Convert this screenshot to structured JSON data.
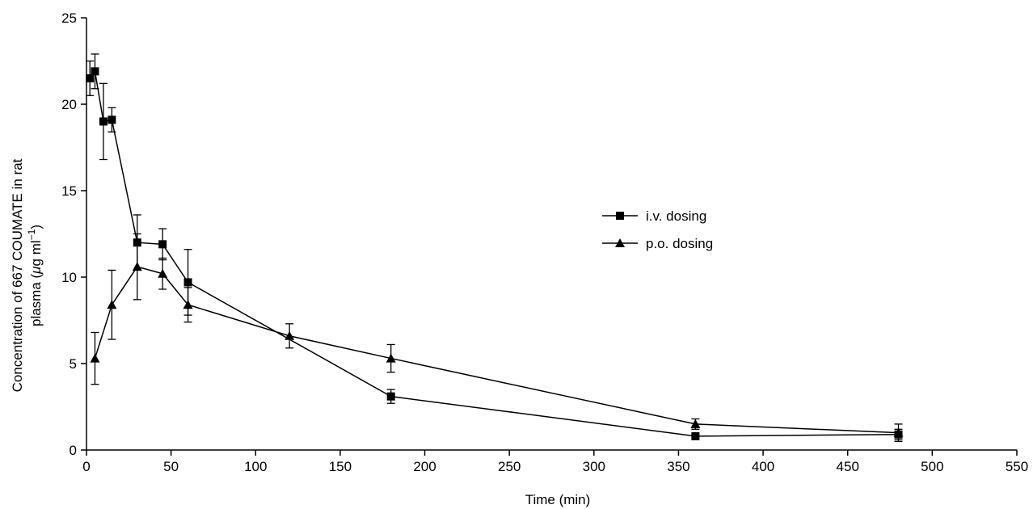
{
  "chart_data": {
    "type": "line",
    "title": "",
    "xlabel": "Time (min)",
    "ylabel_line1": "Concentration of 667 COUMATE in rat",
    "ylabel_line2_prefix": "plasma (",
    "ylabel_mu": "μ",
    "ylabel_unit_g_ml": "g ml",
    "ylabel_sup": "−1",
    "ylabel_close": ")",
    "xlim": [
      0,
      550
    ],
    "ylim": [
      0,
      25
    ],
    "xticks": [
      0,
      50,
      100,
      150,
      200,
      250,
      300,
      350,
      400,
      450,
      500,
      550
    ],
    "yticks": [
      0,
      5,
      10,
      15,
      20,
      25
    ],
    "grid": false,
    "legend_position": "right-center",
    "series": [
      {
        "name": "i.v. dosing",
        "marker": "square",
        "x": [
          2,
          5,
          10,
          15,
          30,
          45,
          60,
          180,
          360,
          480
        ],
        "y": [
          21.5,
          21.9,
          19.0,
          19.1,
          12.0,
          11.9,
          9.7,
          3.1,
          0.8,
          0.9
        ],
        "err": [
          1.0,
          1.0,
          2.2,
          0.7,
          1.6,
          0.9,
          1.9,
          0.4,
          0.1,
          0.3
        ]
      },
      {
        "name": "p.o. dosing",
        "marker": "triangle",
        "x": [
          5,
          15,
          30,
          45,
          60,
          120,
          180,
          360,
          480
        ],
        "y": [
          5.3,
          8.4,
          10.6,
          10.2,
          8.4,
          6.6,
          5.3,
          1.5,
          1.0
        ],
        "err": [
          1.5,
          2.0,
          1.9,
          0.9,
          1.0,
          0.7,
          0.8,
          0.3,
          0.5
        ]
      }
    ]
  }
}
